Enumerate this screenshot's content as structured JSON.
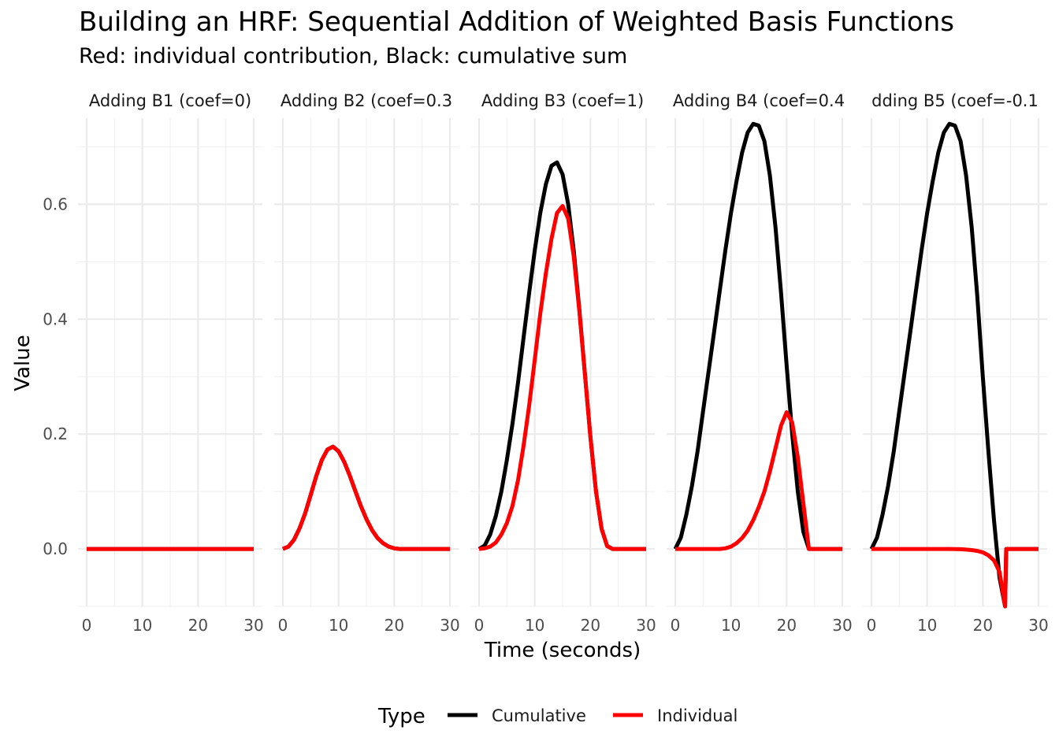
{
  "chart_data": {
    "type": "line",
    "title": "Building an HRF: Sequential Addition of Weighted Basis Functions",
    "subtitle": "Red: individual contribution, Black: cumulative sum",
    "xlabel": "Time (seconds)",
    "ylabel": "Value",
    "xlim": [
      0,
      30
    ],
    "ylim": [
      -0.1,
      0.75
    ],
    "x_ticks": [
      0,
      10,
      20,
      30
    ],
    "y_ticks": [
      0.0,
      0.2,
      0.4,
      0.6
    ],
    "y_tick_labels": [
      "0.0",
      "0.2",
      "0.4",
      "0.6"
    ],
    "grid": true,
    "legend": {
      "title": "Type",
      "position": "bottom",
      "entries": [
        {
          "name": "Cumulative",
          "color": "#000000"
        },
        {
          "name": "Individual",
          "color": "#ff0000"
        }
      ]
    },
    "panels": [
      {
        "label": "Adding B1 (coef=0)",
        "series": [
          {
            "name": "Cumulative",
            "x": [
              0,
              30
            ],
            "y": [
              0,
              0
            ]
          },
          {
            "name": "Individual",
            "x": [
              0,
              30
            ],
            "y": [
              0,
              0
            ]
          }
        ]
      },
      {
        "label": "Adding B2 (coef=0.3",
        "series": [
          {
            "name": "Cumulative",
            "x": [
              0,
              1,
              2,
              3,
              4,
              5,
              6,
              7,
              8,
              9,
              10,
              11,
              12,
              13,
              14,
              15,
              16,
              17,
              18,
              19,
              20,
              21,
              22,
              23,
              24,
              25,
              26,
              27,
              28,
              29,
              30
            ],
            "y": [
              0,
              0.004,
              0.016,
              0.036,
              0.062,
              0.094,
              0.127,
              0.155,
              0.173,
              0.178,
              0.17,
              0.152,
              0.128,
              0.101,
              0.075,
              0.052,
              0.033,
              0.019,
              0.01,
              0.004,
              0.001,
              0.0,
              0,
              0,
              0,
              0,
              0,
              0,
              0,
              0,
              0
            ]
          },
          {
            "name": "Individual",
            "x": [
              0,
              1,
              2,
              3,
              4,
              5,
              6,
              7,
              8,
              9,
              10,
              11,
              12,
              13,
              14,
              15,
              16,
              17,
              18,
              19,
              20,
              21,
              22,
              23,
              24,
              25,
              26,
              27,
              28,
              29,
              30
            ],
            "y": [
              0,
              0.004,
              0.016,
              0.036,
              0.062,
              0.094,
              0.127,
              0.155,
              0.173,
              0.178,
              0.17,
              0.152,
              0.128,
              0.101,
              0.075,
              0.052,
              0.033,
              0.019,
              0.01,
              0.004,
              0.001,
              0.0,
              0,
              0,
              0,
              0,
              0,
              0,
              0,
              0,
              0
            ]
          }
        ]
      },
      {
        "label": "Adding B3 (coef=1)",
        "series": [
          {
            "name": "Cumulative",
            "x": [
              0,
              1,
              2,
              3,
              4,
              5,
              6,
              7,
              8,
              9,
              10,
              11,
              12,
              13,
              14,
              15,
              16,
              17,
              18,
              19,
              20,
              21,
              22,
              23,
              24,
              25,
              26,
              27,
              28,
              29,
              30
            ],
            "y": [
              0,
              0.006,
              0.025,
              0.057,
              0.1,
              0.155,
              0.218,
              0.29,
              0.368,
              0.446,
              0.52,
              0.585,
              0.635,
              0.667,
              0.673,
              0.652,
              0.6,
              0.52,
              0.418,
              0.305,
              0.195,
              0.1,
              0.035,
              0.005,
              0,
              0,
              0,
              0,
              0,
              0,
              0
            ]
          },
          {
            "name": "Individual",
            "x": [
              0,
              1,
              2,
              3,
              4,
              5,
              6,
              7,
              8,
              9,
              10,
              11,
              12,
              13,
              14,
              15,
              16,
              17,
              18,
              19,
              20,
              21,
              22,
              23,
              24,
              25,
              26,
              27,
              28,
              29,
              30
            ],
            "y": [
              0,
              0.001,
              0.004,
              0.011,
              0.025,
              0.045,
              0.075,
              0.12,
              0.18,
              0.25,
              0.33,
              0.41,
              0.48,
              0.54,
              0.585,
              0.597,
              0.575,
              0.51,
              0.415,
              0.305,
              0.195,
              0.1,
              0.035,
              0.005,
              0,
              0,
              0,
              0,
              0,
              0,
              0
            ]
          }
        ]
      },
      {
        "label": "Adding B4 (coef=0.4",
        "series": [
          {
            "name": "Cumulative",
            "x": [
              0,
              1,
              2,
              3,
              4,
              5,
              6,
              7,
              8,
              9,
              10,
              11,
              12,
              13,
              14,
              15,
              16,
              17,
              18,
              19,
              20,
              21,
              22,
              23,
              24,
              25,
              26,
              27,
              28,
              29,
              30
            ],
            "y": [
              0,
              0.02,
              0.06,
              0.11,
              0.17,
              0.24,
              0.31,
              0.38,
              0.45,
              0.52,
              0.585,
              0.64,
              0.69,
              0.725,
              0.74,
              0.737,
              0.71,
              0.65,
              0.56,
              0.445,
              0.32,
              0.2,
              0.1,
              0.03,
              0,
              0,
              0,
              0,
              0,
              0,
              0
            ]
          },
          {
            "name": "Individual",
            "x": [
              0,
              1,
              2,
              3,
              4,
              5,
              6,
              7,
              8,
              9,
              10,
              11,
              12,
              13,
              14,
              15,
              16,
              17,
              18,
              19,
              20,
              21,
              22,
              23,
              24,
              25,
              26,
              27,
              28,
              29,
              30
            ],
            "y": [
              0,
              0,
              0,
              0,
              0,
              0,
              0,
              0,
              0,
              0.001,
              0.004,
              0.01,
              0.019,
              0.032,
              0.05,
              0.073,
              0.1,
              0.135,
              0.175,
              0.215,
              0.238,
              0.22,
              0.16,
              0.08,
              0,
              0,
              0,
              0,
              0,
              0,
              0
            ]
          }
        ]
      },
      {
        "label": "dding B5 (coef=-0.1",
        "series": [
          {
            "name": "Cumulative",
            "x": [
              0,
              1,
              2,
              3,
              4,
              5,
              6,
              7,
              8,
              9,
              10,
              11,
              12,
              13,
              14,
              15,
              16,
              17,
              18,
              19,
              20,
              21,
              22,
              23,
              24,
              24.2,
              25,
              26,
              27,
              28,
              29,
              30
            ],
            "y": [
              0,
              0.02,
              0.06,
              0.11,
              0.17,
              0.24,
              0.31,
              0.38,
              0.45,
              0.52,
              0.585,
              0.64,
              0.69,
              0.725,
              0.74,
              0.737,
              0.71,
              0.65,
              0.56,
              0.44,
              0.3,
              0.17,
              0.05,
              -0.05,
              -0.1,
              0,
              0,
              0,
              0,
              0,
              0,
              0
            ]
          },
          {
            "name": "Individual",
            "x": [
              0,
              14,
              15,
              16,
              17,
              18,
              19,
              20,
              21,
              22,
              23,
              24,
              24.2,
              25,
              26,
              27,
              28,
              29,
              30
            ],
            "y": [
              0,
              0,
              -0.0002,
              -0.0005,
              -0.0011,
              -0.002,
              -0.0035,
              -0.006,
              -0.011,
              -0.02,
              -0.04,
              -0.1,
              0,
              0,
              0,
              0,
              0,
              0,
              0
            ]
          }
        ]
      }
    ]
  }
}
